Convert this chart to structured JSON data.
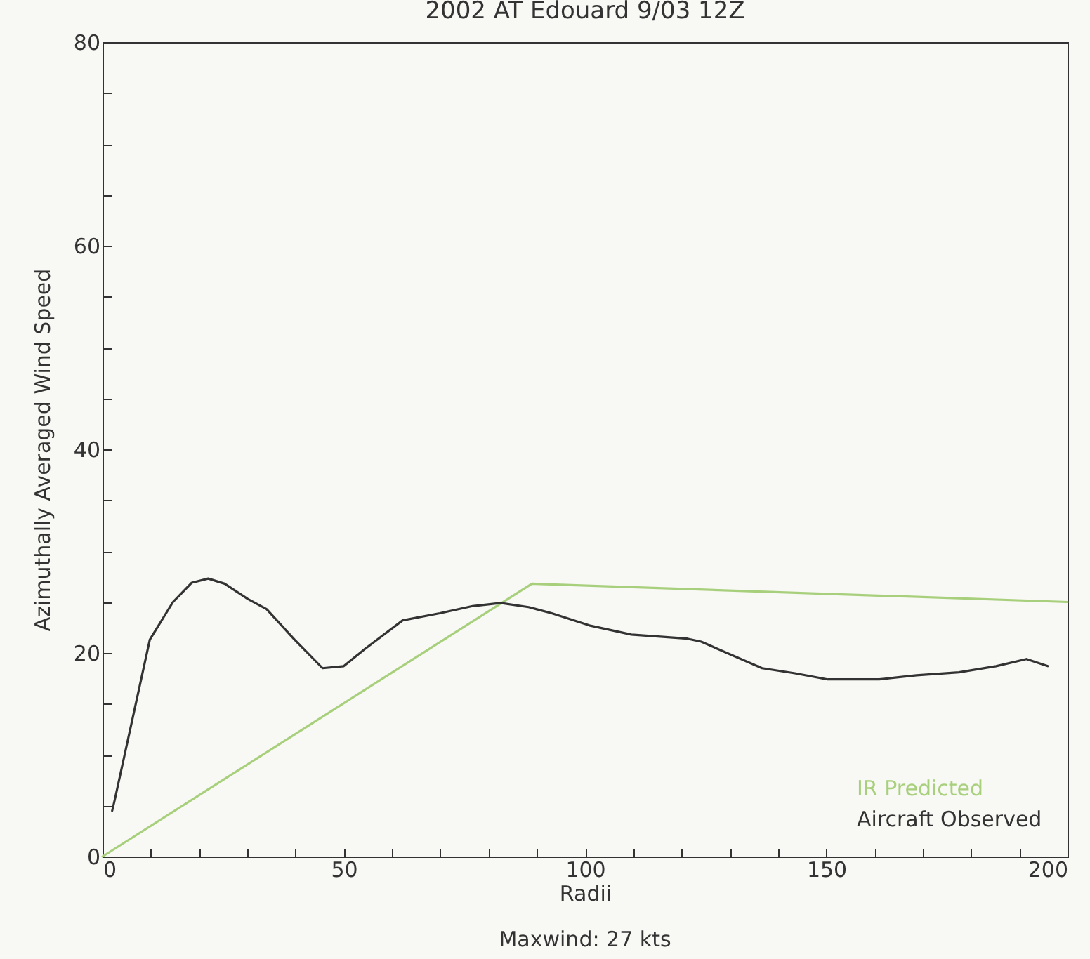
{
  "chart_data": {
    "type": "line",
    "title": "2002 AT Edouard 9/03 12Z",
    "xlabel": "Radii",
    "ylabel": "Azimuthally Averaged Wind Speed",
    "annotations": [
      "Maxwind: 27 kts"
    ],
    "xlim": [
      0,
      200
    ],
    "xticks": [
      0,
      {
        "value": 10,
        "label": null
      },
      {
        "value": 20,
        "label": null
      },
      {
        "value": 30,
        "label": null
      },
      {
        "value": 40,
        "label": null
      },
      50,
      {
        "value": 60,
        "label": null
      },
      {
        "value": 70,
        "label": null
      },
      {
        "value": 80,
        "label": null
      },
      {
        "value": 90,
        "label": null
      },
      100,
      {
        "value": 110,
        "label": null
      },
      {
        "value": 120,
        "label": null
      },
      {
        "value": 130,
        "label": null
      },
      {
        "value": 140,
        "label": null
      },
      150,
      {
        "value": 160,
        "label": null
      },
      {
        "value": 170,
        "label": null
      },
      {
        "value": 180,
        "label": null
      },
      {
        "value": 190,
        "label": null
      },
      200
    ],
    "ylim": [
      0,
      80
    ],
    "yticks": [
      0,
      {
        "value": 5,
        "label": null
      },
      {
        "value": 10,
        "label": null
      },
      {
        "value": 15,
        "label": null
      },
      20,
      {
        "value": 25,
        "label": null
      },
      {
        "value": 30,
        "label": null
      },
      {
        "value": 35,
        "label": null
      },
      40,
      {
        "value": 45,
        "label": null
      },
      {
        "value": 50,
        "label": null
      },
      {
        "value": 55,
        "label": null
      },
      60,
      {
        "value": 65,
        "label": null
      },
      {
        "value": 70,
        "label": null
      },
      {
        "value": 75,
        "label": null
      },
      80
    ],
    "grid": false,
    "legend": "bottom right",
    "series": [
      {
        "name": "IR Predicted",
        "color": "#a8d07c",
        "x": [
          0,
          89,
          95,
          200
        ],
        "values": [
          0,
          26.8,
          26.7,
          25.0
        ]
      },
      {
        "name": "Aircraft Observed",
        "color": "#333333",
        "x": [
          2,
          2.5,
          9.8,
          14.6,
          18.5,
          21.9,
          25.3,
          30.1,
          34,
          39.8,
          45.6,
          50,
          54.4,
          62.2,
          69.9,
          76.7,
          82.5,
          88.3,
          93.1,
          100.9,
          109.6,
          121.2,
          124.1,
          129.9,
          136.7,
          143.5,
          150.3,
          161,
          168.7,
          177.5,
          185.2,
          191.5,
          195.9
        ],
        "values": [
          4.5,
          5.5,
          21.3,
          25.0,
          26.9,
          27.3,
          26.8,
          25.3,
          24.3,
          21.3,
          18.5,
          18.7,
          20.4,
          23.2,
          23.9,
          24.6,
          24.9,
          24.5,
          23.9,
          22.7,
          21.8,
          21.4,
          21.1,
          19.9,
          18.5,
          18.0,
          17.4,
          17.4,
          17.8,
          18.1,
          18.7,
          19.4,
          18.7
        ]
      }
    ]
  }
}
